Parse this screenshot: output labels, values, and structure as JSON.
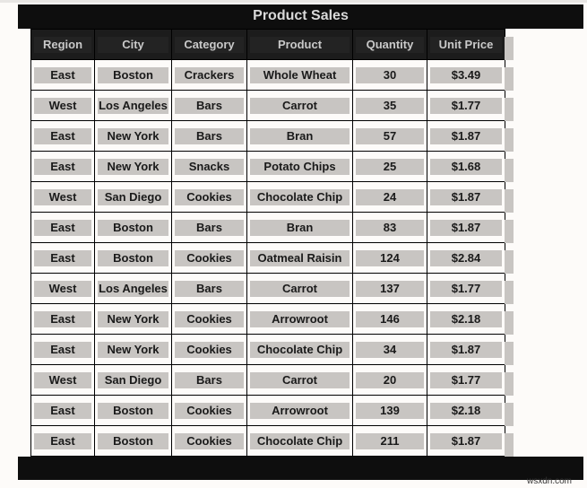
{
  "title": "Product Sales",
  "watermark": "wsxdn.com",
  "columns": [
    "Region",
    "City",
    "Category",
    "Product",
    "Quantity",
    "Unit Price"
  ],
  "rows": [
    [
      "East",
      "Boston",
      "Crackers",
      "Whole Wheat",
      "30",
      "$3.49"
    ],
    [
      "West",
      "Los Angeles",
      "Bars",
      "Carrot",
      "35",
      "$1.77"
    ],
    [
      "East",
      "New York",
      "Bars",
      "Bran",
      "57",
      "$1.87"
    ],
    [
      "East",
      "New York",
      "Snacks",
      "Potato Chips",
      "25",
      "$1.68"
    ],
    [
      "West",
      "San Diego",
      "Cookies",
      "Chocolate Chip",
      "24",
      "$1.87"
    ],
    [
      "East",
      "Boston",
      "Bars",
      "Bran",
      "83",
      "$1.87"
    ],
    [
      "East",
      "Boston",
      "Cookies",
      "Oatmeal Raisin",
      "124",
      "$2.84"
    ],
    [
      "West",
      "Los Angeles",
      "Bars",
      "Carrot",
      "137",
      "$1.77"
    ],
    [
      "East",
      "New York",
      "Cookies",
      "Arrowroot",
      "146",
      "$2.18"
    ],
    [
      "East",
      "New York",
      "Cookies",
      "Chocolate Chip",
      "34",
      "$1.87"
    ],
    [
      "West",
      "San Diego",
      "Bars",
      "Carrot",
      "20",
      "$1.77"
    ],
    [
      "East",
      "Boston",
      "Cookies",
      "Arrowroot",
      "139",
      "$2.18"
    ],
    [
      "East",
      "Boston",
      "Cookies",
      "Chocolate Chip",
      "211",
      "$1.87"
    ]
  ],
  "colors": {
    "header_bg": "#1c1c1c",
    "title_bg": "#0e0e0e",
    "cell_highlight": "#c8c5c2",
    "page_bg": "#fdfbf9"
  }
}
